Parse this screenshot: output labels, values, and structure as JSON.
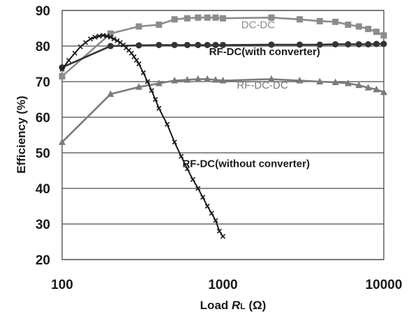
{
  "chart_data": {
    "type": "line",
    "title": "",
    "xlabel": "Load R_L (Ω)",
    "xlabel_parts": {
      "load": "Load ",
      "r": "R",
      "sub": "L",
      "unit": " (Ω)"
    },
    "ylabel": "Efficiency (%)",
    "x_scale": "log",
    "xlim": [
      100,
      10000
    ],
    "ylim": [
      20,
      90
    ],
    "x_ticks": [
      "100",
      "1000",
      "10000"
    ],
    "x_tick_values": [
      100,
      1000,
      10000
    ],
    "y_ticks": [
      "20",
      "30",
      "40",
      "50",
      "60",
      "70",
      "80",
      "90"
    ],
    "y_tick_values": [
      20,
      30,
      40,
      50,
      60,
      70,
      80,
      90
    ],
    "grid": "horizontal",
    "legend": "none (series labeled inline)",
    "series": [
      {
        "name": "DC-DC",
        "color": "#8c8c8c",
        "marker": "square",
        "points": [
          [
            100,
            71.5
          ],
          [
            200,
            83.5
          ],
          [
            300,
            85.5
          ],
          [
            400,
            86
          ],
          [
            500,
            87.5
          ],
          [
            600,
            87.8
          ],
          [
            700,
            88
          ],
          [
            800,
            88
          ],
          [
            900,
            88
          ],
          [
            1000,
            87.8
          ],
          [
            2000,
            88
          ],
          [
            3000,
            87.5
          ],
          [
            4000,
            87
          ],
          [
            5000,
            86.8
          ],
          [
            6000,
            86
          ],
          [
            7000,
            85.5
          ],
          [
            8000,
            84.8
          ],
          [
            9000,
            84
          ],
          [
            10000,
            83
          ]
        ]
      },
      {
        "name": "RF-DC(with converter)",
        "color": "#333333",
        "marker": "circle",
        "points": [
          [
            100,
            74
          ],
          [
            200,
            80
          ],
          [
            300,
            80.2
          ],
          [
            400,
            80.3
          ],
          [
            500,
            80.3
          ],
          [
            600,
            80.3
          ],
          [
            700,
            80.3
          ],
          [
            800,
            80.3
          ],
          [
            900,
            80.3
          ],
          [
            1000,
            80.3
          ],
          [
            2000,
            80.4
          ],
          [
            3000,
            80.4
          ],
          [
            4000,
            80.4
          ],
          [
            5000,
            80.5
          ],
          [
            6000,
            80.5
          ],
          [
            7000,
            80.5
          ],
          [
            8000,
            80.5
          ],
          [
            9000,
            80.6
          ],
          [
            10000,
            80.6
          ]
        ]
      },
      {
        "name": "RF-DC-DC",
        "color": "#7a7a7a",
        "marker": "triangle",
        "points": [
          [
            100,
            53
          ],
          [
            200,
            66.5
          ],
          [
            300,
            68.5
          ],
          [
            400,
            69.5
          ],
          [
            500,
            70.3
          ],
          [
            600,
            70.5
          ],
          [
            700,
            70.7
          ],
          [
            800,
            70.7
          ],
          [
            900,
            70.5
          ],
          [
            1000,
            70.3
          ],
          [
            2000,
            70.7
          ],
          [
            3000,
            70.3
          ],
          [
            4000,
            70
          ],
          [
            5000,
            69.8
          ],
          [
            6000,
            69.5
          ],
          [
            7000,
            69
          ],
          [
            8000,
            68.3
          ],
          [
            9000,
            67.8
          ],
          [
            10000,
            67
          ]
        ]
      },
      {
        "name": "RF-DC(without converter)",
        "color": "#1a1a1a",
        "marker": "x",
        "points": [
          [
            100,
            73.5
          ],
          [
            110,
            76
          ],
          [
            120,
            78
          ],
          [
            130,
            79.8
          ],
          [
            140,
            81
          ],
          [
            150,
            82
          ],
          [
            160,
            82.5
          ],
          [
            170,
            82.8
          ],
          [
            180,
            83
          ],
          [
            190,
            82.8
          ],
          [
            200,
            82.5
          ],
          [
            210,
            82
          ],
          [
            220,
            81.5
          ],
          [
            230,
            81
          ],
          [
            240,
            80.3
          ],
          [
            250,
            79.5
          ],
          [
            260,
            78.8
          ],
          [
            270,
            78
          ],
          [
            280,
            77
          ],
          [
            290,
            76
          ],
          [
            300,
            75
          ],
          [
            320,
            72.5
          ],
          [
            340,
            70
          ],
          [
            360,
            67.5
          ],
          [
            380,
            65
          ],
          [
            400,
            62.5
          ],
          [
            450,
            58
          ],
          [
            500,
            53
          ],
          [
            550,
            49
          ],
          [
            600,
            45.5
          ],
          [
            650,
            42.5
          ],
          [
            700,
            40
          ],
          [
            750,
            37.5
          ],
          [
            800,
            35
          ],
          [
            850,
            33
          ],
          [
            900,
            31
          ],
          [
            950,
            28
          ],
          [
            1000,
            26.5
          ]
        ]
      }
    ],
    "annotations": [
      {
        "text": "DC-DC",
        "x": 1300,
        "y": 85,
        "color": "#8c8c8c",
        "bold": false
      },
      {
        "text": "RF-DC(with converter)",
        "x": 820,
        "y": 77.5,
        "color": "#1a1a1a",
        "bold": true
      },
      {
        "text": "RF-DC-DC",
        "x": 1220,
        "y": 68,
        "color": "#7a7a7a",
        "bold": false
      },
      {
        "text": "RF-DC(without converter)",
        "x": 560,
        "y": 46,
        "color": "#1a1a1a",
        "bold": true
      }
    ]
  }
}
